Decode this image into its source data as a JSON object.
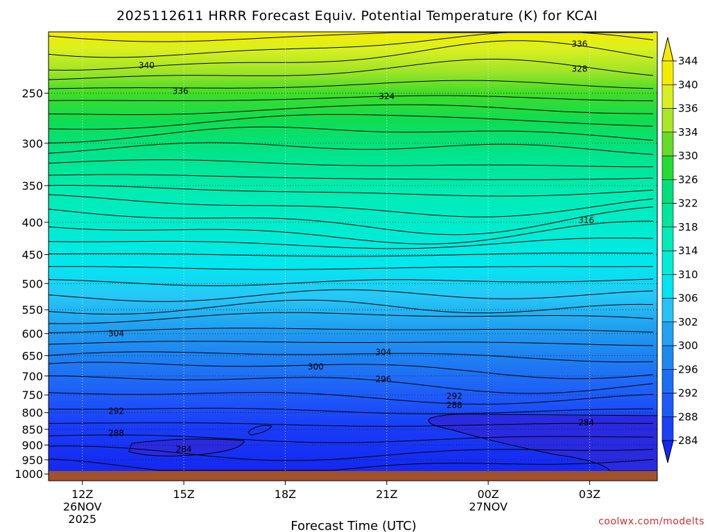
{
  "chart_data": {
    "type": "contour",
    "title": "2025112611 HRRR Forecast Equiv. Potential Temperature (K) for KCAI",
    "xlabel": "Forecast Time (UTC)",
    "ylabel": "",
    "credit": "coolwx.com/modelts",
    "x_ticks": [
      {
        "hour": 12,
        "label": "12Z",
        "sub1": "26NOV",
        "sub2": "2025"
      },
      {
        "hour": 15,
        "label": "15Z",
        "sub1": "",
        "sub2": ""
      },
      {
        "hour": 18,
        "label": "18Z",
        "sub1": "",
        "sub2": ""
      },
      {
        "hour": 21,
        "label": "21Z",
        "sub1": "",
        "sub2": ""
      },
      {
        "hour": 24,
        "label": "00Z",
        "sub1": "27NOV",
        "sub2": ""
      },
      {
        "hour": 27,
        "label": "03Z",
        "sub1": "",
        "sub2": ""
      }
    ],
    "xlim": [
      11,
      29
    ],
    "y_ticks": [
      "250",
      "300",
      "350",
      "400",
      "450",
      "500",
      "550",
      "600",
      "650",
      "700",
      "750",
      "800",
      "850",
      "900",
      "950",
      "1000"
    ],
    "ylim": [
      1025,
      200
    ],
    "y_scale": "log",
    "ground_color": "#a0522d",
    "colorbar": {
      "ticks": [
        "284",
        "288",
        "292",
        "296",
        "300",
        "302",
        "306",
        "310",
        "314",
        "318",
        "322",
        "326",
        "330",
        "334",
        "336",
        "340",
        "344"
      ],
      "colors": [
        "#1428f0",
        "#1a40f8",
        "#1e5af8",
        "#1e6ef4",
        "#1e88f0",
        "#22a2f0",
        "#26c2f6",
        "#00e6f0",
        "#00ecd6",
        "#00ecba",
        "#00e69a",
        "#00e07a",
        "#22dc30",
        "#66dc28",
        "#a8e828",
        "#d8f020",
        "#f6ec00"
      ]
    },
    "contour_labels": [
      {
        "text": "336",
        "hour": 26.7,
        "p": 209
      },
      {
        "text": "340",
        "hour": 13.9,
        "p": 226
      },
      {
        "text": "328",
        "hour": 26.7,
        "p": 229
      },
      {
        "text": "336",
        "hour": 14.9,
        "p": 248
      },
      {
        "text": "324",
        "hour": 21.0,
        "p": 253
      },
      {
        "text": "316",
        "hour": 26.9,
        "p": 397
      },
      {
        "text": "304",
        "hour": 13.0,
        "p": 600
      },
      {
        "text": "304",
        "hour": 20.9,
        "p": 642
      },
      {
        "text": "300",
        "hour": 18.9,
        "p": 677
      },
      {
        "text": "296",
        "hour": 20.9,
        "p": 708
      },
      {
        "text": "292",
        "hour": 23.0,
        "p": 754
      },
      {
        "text": "292",
        "hour": 13.0,
        "p": 796
      },
      {
        "text": "288",
        "hour": 23.0,
        "p": 779
      },
      {
        "text": "288",
        "hour": 13.0,
        "p": 862
      },
      {
        "text": "284",
        "hour": 26.9,
        "p": 829
      },
      {
        "text": "284",
        "hour": 15.0,
        "p": 914
      }
    ]
  }
}
